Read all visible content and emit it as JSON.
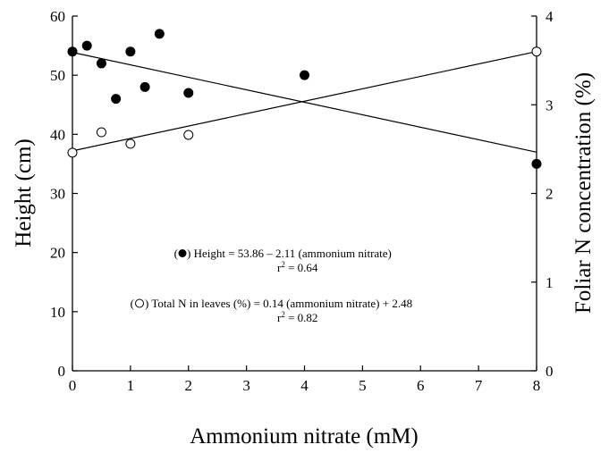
{
  "chart_data": {
    "type": "scatter",
    "title": "",
    "xlabel": "Ammonium nitrate (mM)",
    "ylabel": "Height (cm)",
    "y2label": "Foliar N concentration (%)",
    "xlim": [
      0,
      8
    ],
    "ylim": [
      0,
      60
    ],
    "y2lim": [
      0,
      4
    ],
    "x_ticks": [
      "0",
      "1",
      "2",
      "3",
      "4",
      "5",
      "6",
      "7",
      "8"
    ],
    "y_ticks": [
      "0",
      "10",
      "20",
      "30",
      "40",
      "50",
      "60"
    ],
    "y2_ticks": [
      "0",
      "1",
      "2",
      "3",
      "4"
    ],
    "grid": false,
    "series": [
      {
        "marker": "filled-circle",
        "axis": "left",
        "points": [
          {
            "x": 0,
            "y": 54
          },
          {
            "x": 0.25,
            "y": 55
          },
          {
            "x": 0.5,
            "y": 52
          },
          {
            "x": 0.75,
            "y": 46
          },
          {
            "x": 1,
            "y": 54
          },
          {
            "x": 1.25,
            "y": 48
          },
          {
            "x": 1.5,
            "y": 57
          },
          {
            "x": 2,
            "y": 47
          },
          {
            "x": 4,
            "y": 50
          },
          {
            "x": 8,
            "y": 35
          }
        ],
        "fit": {
          "intercept": 53.86,
          "slope": -2.11
        }
      },
      {
        "marker": "open-circle",
        "axis": "right",
        "points": [
          {
            "x": 0,
            "y": 2.46
          },
          {
            "x": 0.5,
            "y": 2.69
          },
          {
            "x": 1,
            "y": 2.56
          },
          {
            "x": 2,
            "y": 2.66
          },
          {
            "x": 8,
            "y": 3.6
          }
        ],
        "fit": {
          "intercept": 2.48,
          "slope": 0.14
        }
      }
    ],
    "annotations": [
      {
        "prefix": "(",
        "suffix": ") Height = 53.86 – 2.11 (ammonium nitrate)",
        "r2": "r",
        "r2sup": "2",
        "r2val": " = 0.64"
      },
      {
        "prefix": "(",
        "suffix": ") Total N in leaves (%)  =  0.14 (ammonium nitrate) + 2.48",
        "r2": "r",
        "r2sup": "2",
        "r2val": " = 0.82"
      }
    ],
    "colors": {
      "ink": "#000000",
      "open_fill": "#ffffff"
    }
  }
}
